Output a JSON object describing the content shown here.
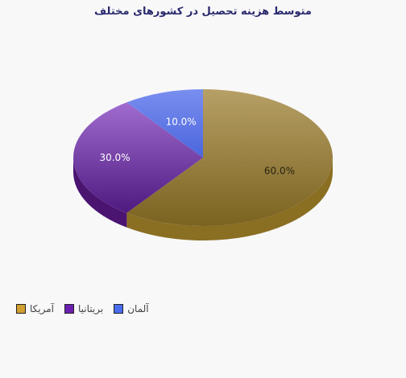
{
  "chart_data": {
    "type": "pie",
    "title": "متوسط هزینه تحصیل در کشورهای مختلف",
    "slices": [
      {
        "name": "آمریکا",
        "value": 60.0,
        "label": "60.0%",
        "color": "#a88a3a",
        "legend_color": "#d19f2f"
      },
      {
        "name": "بریتانیا",
        "value": 30.0,
        "label": "30.0%",
        "color": "#6a2a9e",
        "legend_color": "#6c1fb0"
      },
      {
        "name": "آلمان",
        "value": 10.0,
        "label": "10.0%",
        "color": "#5a78e8",
        "legend_color": "#4a6cf0"
      }
    ],
    "style": "3d",
    "legend_position": "bottom-left"
  }
}
